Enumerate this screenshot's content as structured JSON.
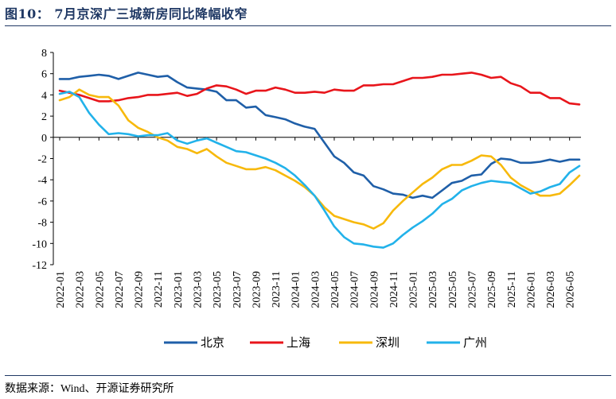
{
  "figure": {
    "title": "图10：  7月京深广三城新房同比降幅收窄",
    "source": "数据来源：Wind、开源证券研究所"
  },
  "chart_data": {
    "type": "line",
    "ylim": [
      -12,
      8
    ],
    "yticks": [
      8,
      6,
      4,
      2,
      0,
      -2,
      -4,
      -6,
      -8,
      -10,
      -12
    ],
    "grid": false,
    "legend": "bottom",
    "xtick_labels": [
      "2022-01",
      "2022-03",
      "2022-05",
      "2022-07",
      "2022-09",
      "2022-11",
      "2023-01",
      "2023-03",
      "2023-05",
      "2023-07",
      "2023-09",
      "2023-11",
      "2024-01",
      "2024-03",
      "2024-05",
      "2024-07",
      "2024-09",
      "2024-11",
      "2025-01",
      "2025-03",
      "2025-05",
      "2025-07",
      "2025-09",
      "2025-11",
      "2026-01",
      "2026-03",
      "2026-05"
    ],
    "x": [
      "2022-01",
      "2022-02",
      "2022-03",
      "2022-04",
      "2022-05",
      "2022-06",
      "2022-07",
      "2022-08",
      "2022-09",
      "2022-10",
      "2022-11",
      "2022-12",
      "2023-01",
      "2023-02",
      "2023-03",
      "2023-04",
      "2023-05",
      "2023-06",
      "2023-07",
      "2023-08",
      "2023-09",
      "2023-10",
      "2023-11",
      "2023-12",
      "2024-01",
      "2024-02",
      "2024-03",
      "2024-04",
      "2024-05",
      "2024-06",
      "2024-07",
      "2024-08",
      "2024-09",
      "2024-10",
      "2024-11",
      "2024-12",
      "2025-01",
      "2025-02",
      "2025-03",
      "2025-04",
      "2025-05",
      "2025-06",
      "2025-07",
      "2025-08",
      "2025-09",
      "2025-10",
      "2025-11",
      "2025-12",
      "2026-01",
      "2026-02",
      "2026-03",
      "2026-04",
      "2026-05",
      "2026-06"
    ],
    "series": [
      {
        "name": "北京",
        "color": "#1f5fa8",
        "values": [
          5.5,
          5.5,
          5.7,
          5.8,
          5.9,
          5.8,
          5.5,
          5.8,
          6.1,
          5.9,
          5.7,
          5.8,
          5.2,
          4.7,
          4.6,
          4.5,
          4.3,
          3.5,
          3.5,
          2.8,
          2.9,
          2.1,
          1.9,
          1.7,
          1.3,
          1.0,
          0.8,
          -0.5,
          -1.8,
          -2.4,
          -3.3,
          -3.6,
          -4.6,
          -4.9,
          -5.3,
          -5.4,
          -5.7,
          -5.5,
          -5.7,
          -5.0,
          -4.3,
          -4.1,
          -3.6,
          -3.5,
          -2.5,
          -2.0,
          -2.1,
          -2.4,
          -2.4,
          -2.3,
          -2.1,
          -2.3,
          -2.1,
          -2.1
        ]
      },
      {
        "name": "上海",
        "color": "#e8151b",
        "values": [
          4.4,
          4.2,
          4.0,
          3.7,
          3.4,
          3.4,
          3.5,
          3.7,
          3.8,
          4.0,
          4.0,
          4.1,
          4.2,
          3.9,
          4.1,
          4.6,
          4.9,
          4.8,
          4.5,
          4.1,
          4.4,
          4.4,
          4.7,
          4.5,
          4.2,
          4.2,
          4.3,
          4.2,
          4.5,
          4.4,
          4.4,
          4.9,
          4.9,
          5.0,
          5.0,
          5.3,
          5.6,
          5.6,
          5.7,
          5.9,
          5.9,
          6.0,
          6.1,
          5.9,
          5.6,
          5.7,
          5.1,
          4.8,
          4.2,
          4.2,
          3.7,
          3.7,
          3.2,
          3.1
        ]
      },
      {
        "name": "深圳",
        "color": "#f7b90c",
        "values": [
          3.5,
          3.8,
          4.5,
          4.0,
          3.8,
          3.8,
          3.0,
          1.6,
          0.9,
          0.5,
          0.0,
          -0.3,
          -0.9,
          -1.1,
          -1.5,
          -1.1,
          -1.8,
          -2.4,
          -2.7,
          -3.0,
          -3.0,
          -2.8,
          -3.1,
          -3.6,
          -4.1,
          -4.7,
          -5.5,
          -6.6,
          -7.4,
          -7.7,
          -8.0,
          -8.2,
          -8.6,
          -8.1,
          -6.9,
          -6.0,
          -5.2,
          -4.4,
          -3.8,
          -3.0,
          -2.6,
          -2.6,
          -2.2,
          -1.7,
          -1.8,
          -2.6,
          -3.8,
          -4.5,
          -5.0,
          -5.5,
          -5.5,
          -5.3,
          -4.5,
          -3.6
        ]
      },
      {
        "name": "广州",
        "color": "#22b2ea",
        "values": [
          4.1,
          4.3,
          3.8,
          2.3,
          1.2,
          0.3,
          0.4,
          0.3,
          0.1,
          0.2,
          0.2,
          0.4,
          -0.3,
          -0.6,
          -0.3,
          -0.1,
          -0.5,
          -0.9,
          -1.3,
          -1.4,
          -1.7,
          -2.0,
          -2.4,
          -2.9,
          -3.6,
          -4.5,
          -5.5,
          -6.9,
          -8.4,
          -9.4,
          -10.0,
          -10.1,
          -10.3,
          -10.4,
          -10.0,
          -9.2,
          -8.5,
          -7.9,
          -7.2,
          -6.3,
          -5.8,
          -5.0,
          -4.6,
          -4.3,
          -4.1,
          -4.2,
          -4.3,
          -4.8,
          -5.3,
          -5.1,
          -4.7,
          -4.4,
          -3.3,
          -2.7
        ]
      }
    ]
  }
}
